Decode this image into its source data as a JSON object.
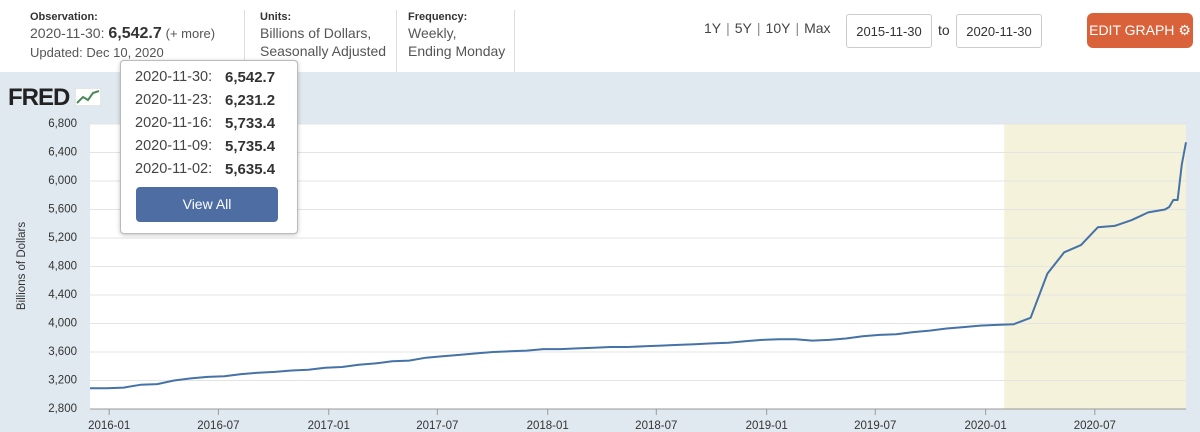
{
  "header": {
    "observation_label": "Observation:",
    "observation_date": "2020-11-30:",
    "observation_value": "6,542.7",
    "more_link": "(+ more)",
    "updated": "Updated: Dec 10, 2020",
    "units_label": "Units:",
    "units": [
      "Billions of Dollars,",
      "Seasonally Adjusted"
    ],
    "frequency_label": "Frequency:",
    "frequency": [
      "Weekly,",
      "Ending Monday"
    ],
    "ranges": [
      "1Y",
      "5Y",
      "10Y",
      "Max"
    ],
    "start_date": "2015-11-30",
    "to": "to",
    "end_date": "2020-11-30",
    "edit_button": "EDIT GRAPH"
  },
  "logo": "FRED",
  "popup": {
    "rows": [
      [
        "2020-11-30:",
        "6,542.7"
      ],
      [
        "2020-11-23:",
        "6,231.2"
      ],
      [
        "2020-11-16:",
        "5,733.4"
      ],
      [
        "2020-11-09:",
        "5,735.4"
      ],
      [
        "2020-11-02:",
        "5,635.4"
      ]
    ],
    "button": "View All"
  },
  "chart_data": {
    "type": "line",
    "y_label": "Billions of Dollars",
    "color": "#4572a7",
    "grid": true,
    "shading": {
      "start": "2020-02-01",
      "end": "2020-11-30",
      "color": "#f4f2da"
    },
    "x": [
      "2015-11-30",
      "2015-12-28",
      "2016-01-25",
      "2016-02-22",
      "2016-03-21",
      "2016-04-18",
      "2016-05-16",
      "2016-06-13",
      "2016-07-11",
      "2016-08-08",
      "2016-09-05",
      "2016-10-03",
      "2016-10-31",
      "2016-11-28",
      "2016-12-26",
      "2017-01-23",
      "2017-02-20",
      "2017-03-20",
      "2017-04-17",
      "2017-05-15",
      "2017-06-12",
      "2017-07-10",
      "2017-08-07",
      "2017-09-04",
      "2017-10-02",
      "2017-10-30",
      "2017-11-27",
      "2017-12-25",
      "2018-01-22",
      "2018-02-19",
      "2018-03-19",
      "2018-04-16",
      "2018-05-14",
      "2018-06-11",
      "2018-07-09",
      "2018-08-06",
      "2018-09-03",
      "2018-10-01",
      "2018-10-29",
      "2018-11-26",
      "2018-12-24",
      "2019-01-21",
      "2019-02-18",
      "2019-03-18",
      "2019-04-15",
      "2019-05-13",
      "2019-06-10",
      "2019-07-08",
      "2019-08-05",
      "2019-09-02",
      "2019-09-30",
      "2019-10-28",
      "2019-11-25",
      "2019-12-23",
      "2020-01-20",
      "2020-02-17",
      "2020-03-16",
      "2020-04-13",
      "2020-05-11",
      "2020-06-08",
      "2020-07-06",
      "2020-08-03",
      "2020-08-31",
      "2020-09-28",
      "2020-10-26",
      "2020-11-02",
      "2020-11-09",
      "2020-11-16",
      "2020-11-23",
      "2020-11-30"
    ],
    "values": [
      3090,
      3090,
      3100,
      3140,
      3150,
      3200,
      3230,
      3250,
      3260,
      3290,
      3310,
      3320,
      3340,
      3350,
      3380,
      3390,
      3420,
      3440,
      3470,
      3480,
      3520,
      3540,
      3560,
      3580,
      3600,
      3610,
      3620,
      3640,
      3640,
      3650,
      3660,
      3670,
      3670,
      3680,
      3690,
      3700,
      3710,
      3720,
      3730,
      3750,
      3770,
      3780,
      3780,
      3760,
      3770,
      3790,
      3820,
      3840,
      3850,
      3880,
      3900,
      3930,
      3950,
      3970,
      3980,
      3990,
      4080,
      4700,
      5000,
      5100,
      5350,
      5370,
      5450,
      5560,
      5600,
      5635.4,
      5735.4,
      5733.4,
      6231.2,
      6542.7
    ],
    "xlim": [
      "2015-11-30",
      "2020-11-30"
    ],
    "xticks": [
      "2016-01",
      "2016-07",
      "2017-01",
      "2017-07",
      "2018-01",
      "2018-07",
      "2019-01",
      "2019-07",
      "2020-01",
      "2020-07"
    ],
    "ylim": [
      2800,
      6800
    ],
    "yticks": [
      {
        "value": 2800,
        "label": "2,800"
      },
      {
        "value": 3200,
        "label": "3,200"
      },
      {
        "value": 3600,
        "label": "3,600"
      },
      {
        "value": 4000,
        "label": "4,000"
      },
      {
        "value": 4400,
        "label": "4,400"
      },
      {
        "value": 4800,
        "label": "4,800"
      },
      {
        "value": 5200,
        "label": "5,200"
      },
      {
        "value": 5600,
        "label": "5,600"
      },
      {
        "value": 6000,
        "label": "6,000"
      },
      {
        "value": 6400,
        "label": "6,400"
      },
      {
        "value": 6800,
        "label": "6,800"
      }
    ]
  }
}
